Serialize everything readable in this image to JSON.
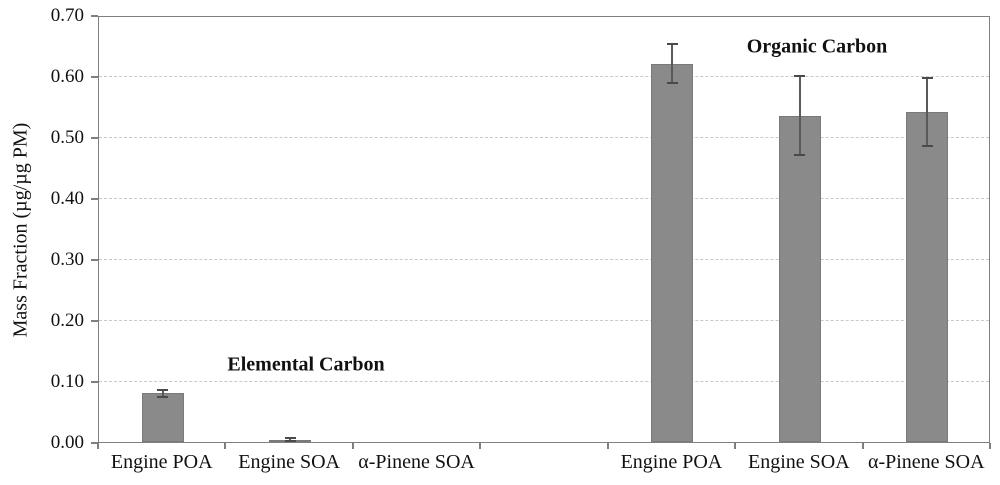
{
  "chart_data": {
    "type": "bar",
    "title": "",
    "xlabel": "",
    "ylabel": "Mass Fraction (µg/µg PM)",
    "ylim": [
      0,
      0.7
    ],
    "grid": "horizontal-dashed",
    "legend": "none",
    "slot_count": 7,
    "yticks": [
      {
        "v": 0.0,
        "label": "0.00"
      },
      {
        "v": 0.1,
        "label": "0.10"
      },
      {
        "v": 0.2,
        "label": "0.20"
      },
      {
        "v": 0.3,
        "label": "0.30"
      },
      {
        "v": 0.4,
        "label": "0.40"
      },
      {
        "v": 0.5,
        "label": "0.50"
      },
      {
        "v": 0.6,
        "label": "0.60"
      },
      {
        "v": 0.7,
        "label": "0.70"
      }
    ],
    "groups": [
      {
        "label": "Elemental Carbon",
        "bars": [
          {
            "category": "Engine POA",
            "slot": 0,
            "value": 0.08,
            "error": 0.006
          },
          {
            "category": "Engine SOA",
            "slot": 1,
            "value": 0.004,
            "error": 0.003
          },
          {
            "category": "α-Pinene SOA",
            "slot": 2,
            "value": 0.0,
            "error": null
          }
        ]
      },
      {
        "label": "Organic Carbon",
        "bars": [
          {
            "category": "Engine POA",
            "slot": 4,
            "value": 0.62,
            "error": 0.032
          },
          {
            "category": "Engine SOA",
            "slot": 5,
            "value": 0.535,
            "error": 0.065
          },
          {
            "category": "α-Pinene SOA",
            "slot": 6,
            "value": 0.541,
            "error": 0.056
          }
        ]
      }
    ],
    "colors": {
      "bar_fill": "#8a8a8a",
      "bar_border": "#7a7a7a",
      "error_bar": "#4a4a4a",
      "axis": "#7f7f7f",
      "gridline": "#c9c9c9",
      "text": "#111111"
    }
  }
}
